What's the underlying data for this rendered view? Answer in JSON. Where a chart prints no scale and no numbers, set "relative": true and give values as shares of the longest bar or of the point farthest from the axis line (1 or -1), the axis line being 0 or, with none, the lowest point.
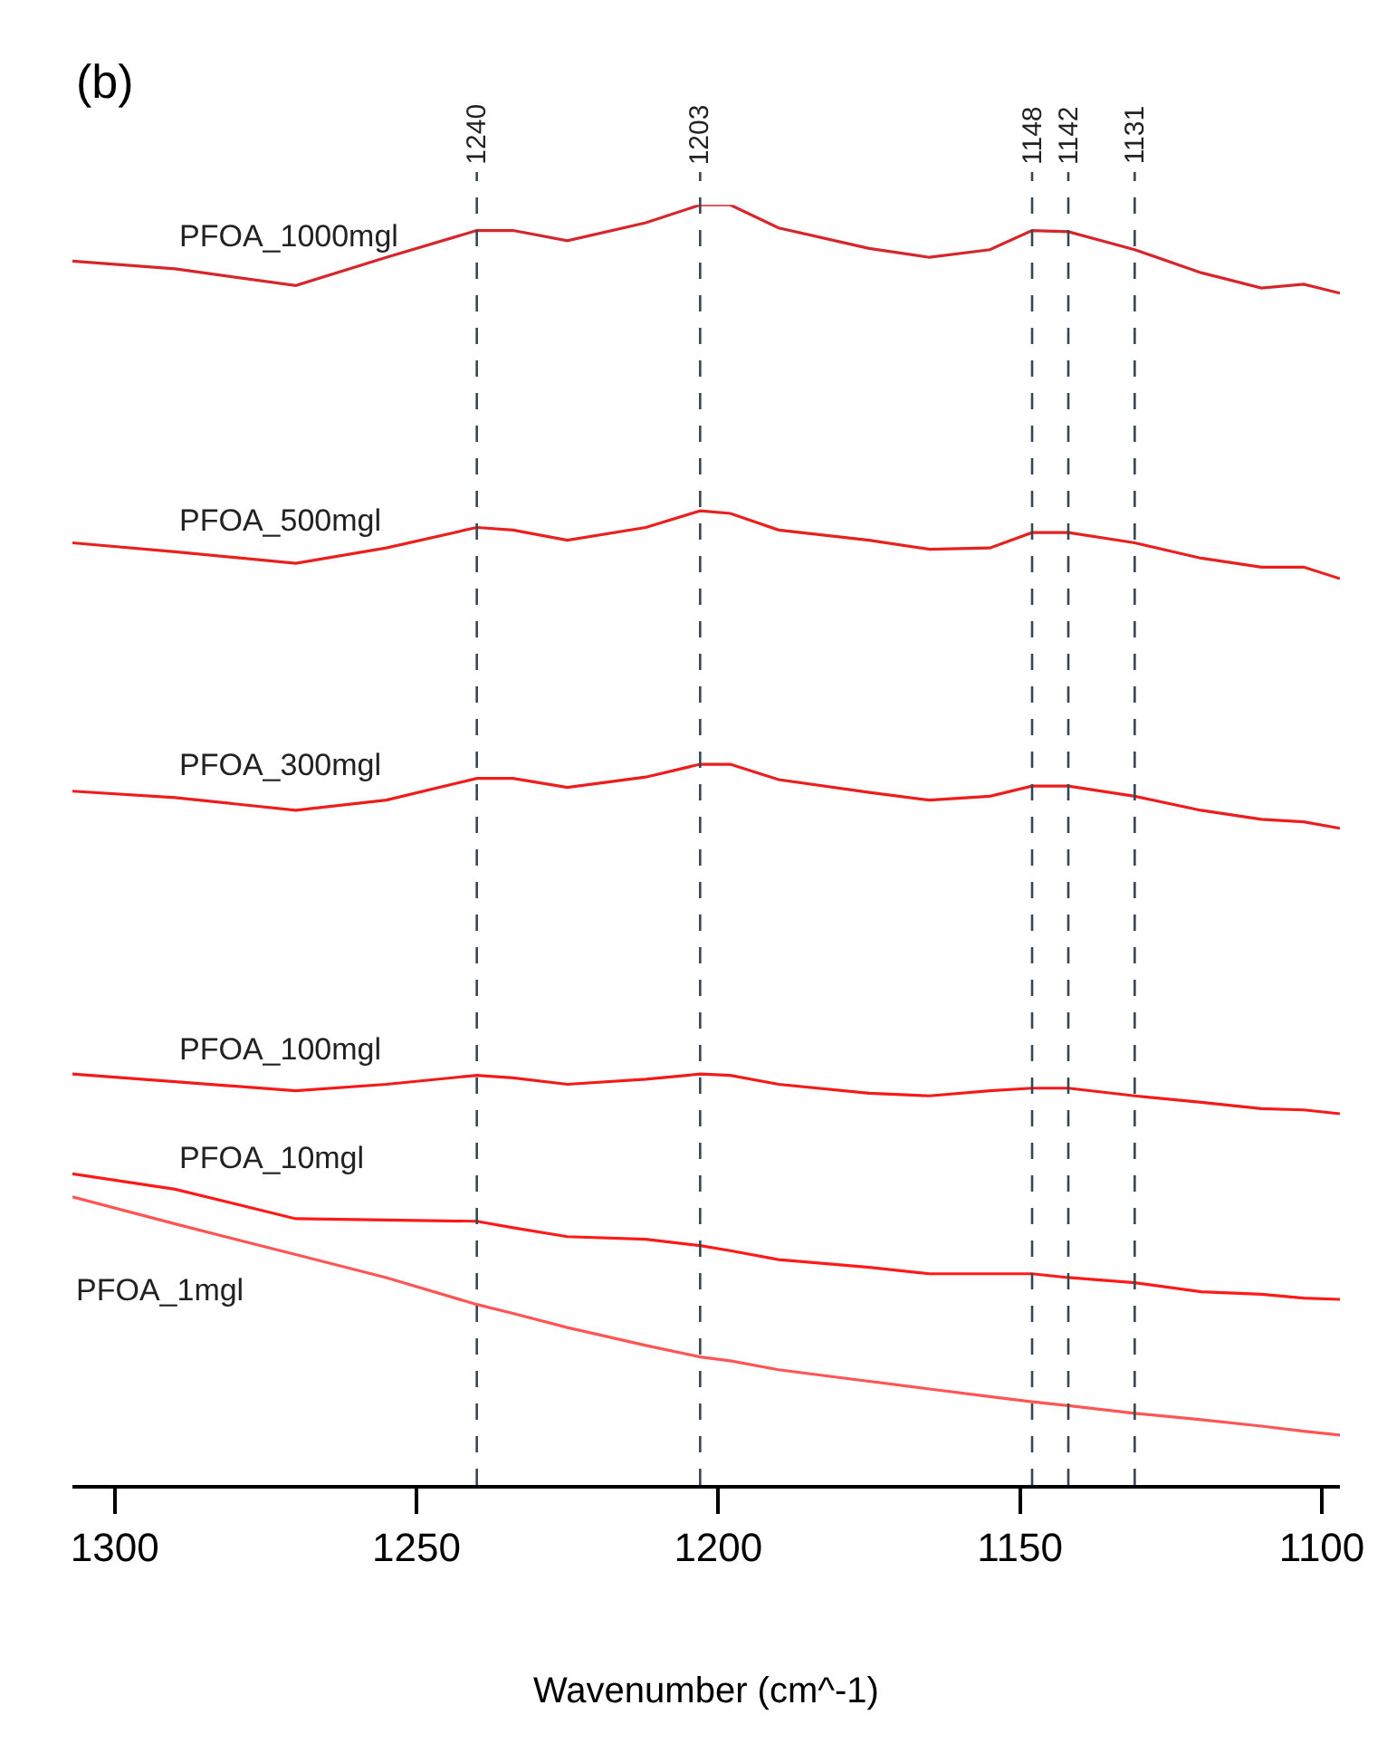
{
  "chart_data": {
    "type": "line",
    "relative": true,
    "xlabel": "Wavenumber (cm^-1)",
    "x": [
      1307,
      1290,
      1270,
      1255,
      1240,
      1234,
      1225,
      1212,
      1203,
      1198,
      1190,
      1175,
      1165,
      1155,
      1148,
      1142,
      1131,
      1120,
      1110,
      1103,
      1097
    ],
    "xlim": [
      1307,
      1097
    ],
    "xticks": [
      1300,
      1250,
      1200,
      1150,
      1100
    ],
    "series": [
      {
        "name": "PFOA_1000mgl",
        "color": "#d7262b",
        "values": [
          0.956,
          0.95,
          0.937,
          0.959,
          0.98,
          0.98,
          0.972,
          0.986,
          1.0,
          1.0,
          0.982,
          0.966,
          0.959,
          0.965,
          0.98,
          0.979,
          0.965,
          0.947,
          0.935,
          0.938,
          0.931
        ]
      },
      {
        "name": "PFOA_500mgl",
        "color": "#e8211f",
        "values": [
          0.736,
          0.729,
          0.72,
          0.732,
          0.748,
          0.746,
          0.738,
          0.748,
          0.761,
          0.759,
          0.746,
          0.738,
          0.731,
          0.732,
          0.744,
          0.744,
          0.736,
          0.724,
          0.717,
          0.717,
          0.708
        ]
      },
      {
        "name": "PFOA_300mgl",
        "color": "#ee1c1c",
        "values": [
          0.542,
          0.537,
          0.527,
          0.535,
          0.552,
          0.552,
          0.545,
          0.553,
          0.563,
          0.563,
          0.551,
          0.541,
          0.535,
          0.538,
          0.546,
          0.546,
          0.538,
          0.527,
          0.52,
          0.518,
          0.513
        ]
      },
      {
        "name": "PFOA_100mgl",
        "color": "#f51a1a",
        "values": [
          0.321,
          0.315,
          0.308,
          0.313,
          0.32,
          0.318,
          0.313,
          0.317,
          0.321,
          0.32,
          0.313,
          0.306,
          0.304,
          0.308,
          0.31,
          0.31,
          0.304,
          0.299,
          0.294,
          0.293,
          0.29
        ]
      },
      {
        "name": "PFOA_10mgl",
        "color": "#ff1a1a",
        "values": [
          0.243,
          0.231,
          0.208,
          0.207,
          0.206,
          0.201,
          0.194,
          0.192,
          0.187,
          0.183,
          0.176,
          0.17,
          0.165,
          0.165,
          0.165,
          0.162,
          0.158,
          0.151,
          0.149,
          0.146,
          0.145
        ]
      },
      {
        "name": "PFOA_1mgl",
        "color": "#ff5555",
        "values": [
          0.225,
          0.204,
          0.18,
          0.162,
          0.141,
          0.134,
          0.123,
          0.109,
          0.1,
          0.097,
          0.09,
          0.081,
          0.075,
          0.069,
          0.065,
          0.062,
          0.056,
          0.051,
          0.046,
          0.042,
          0.039
        ]
      }
    ],
    "ref_lines": [
      {
        "axis": "x",
        "value": 1240,
        "label": "1240",
        "color": "#37474f",
        "line_style": "dashed"
      },
      {
        "axis": "x",
        "value": 1203,
        "label": "1203",
        "color": "#37474f",
        "line_style": "dashed"
      },
      {
        "axis": "x",
        "value": 1148,
        "label": "1148",
        "color": "#37474f",
        "line_style": "dashed"
      },
      {
        "axis": "x",
        "value": 1142,
        "label": "1142",
        "color": "#37474f",
        "line_style": "dashed"
      },
      {
        "axis": "x",
        "value": 1131,
        "label": "1131",
        "color": "#37474f",
        "line_style": "dashed"
      }
    ],
    "annotations": [
      "(b)"
    ],
    "legend": false,
    "marker": "none",
    "line_style": "solid"
  }
}
